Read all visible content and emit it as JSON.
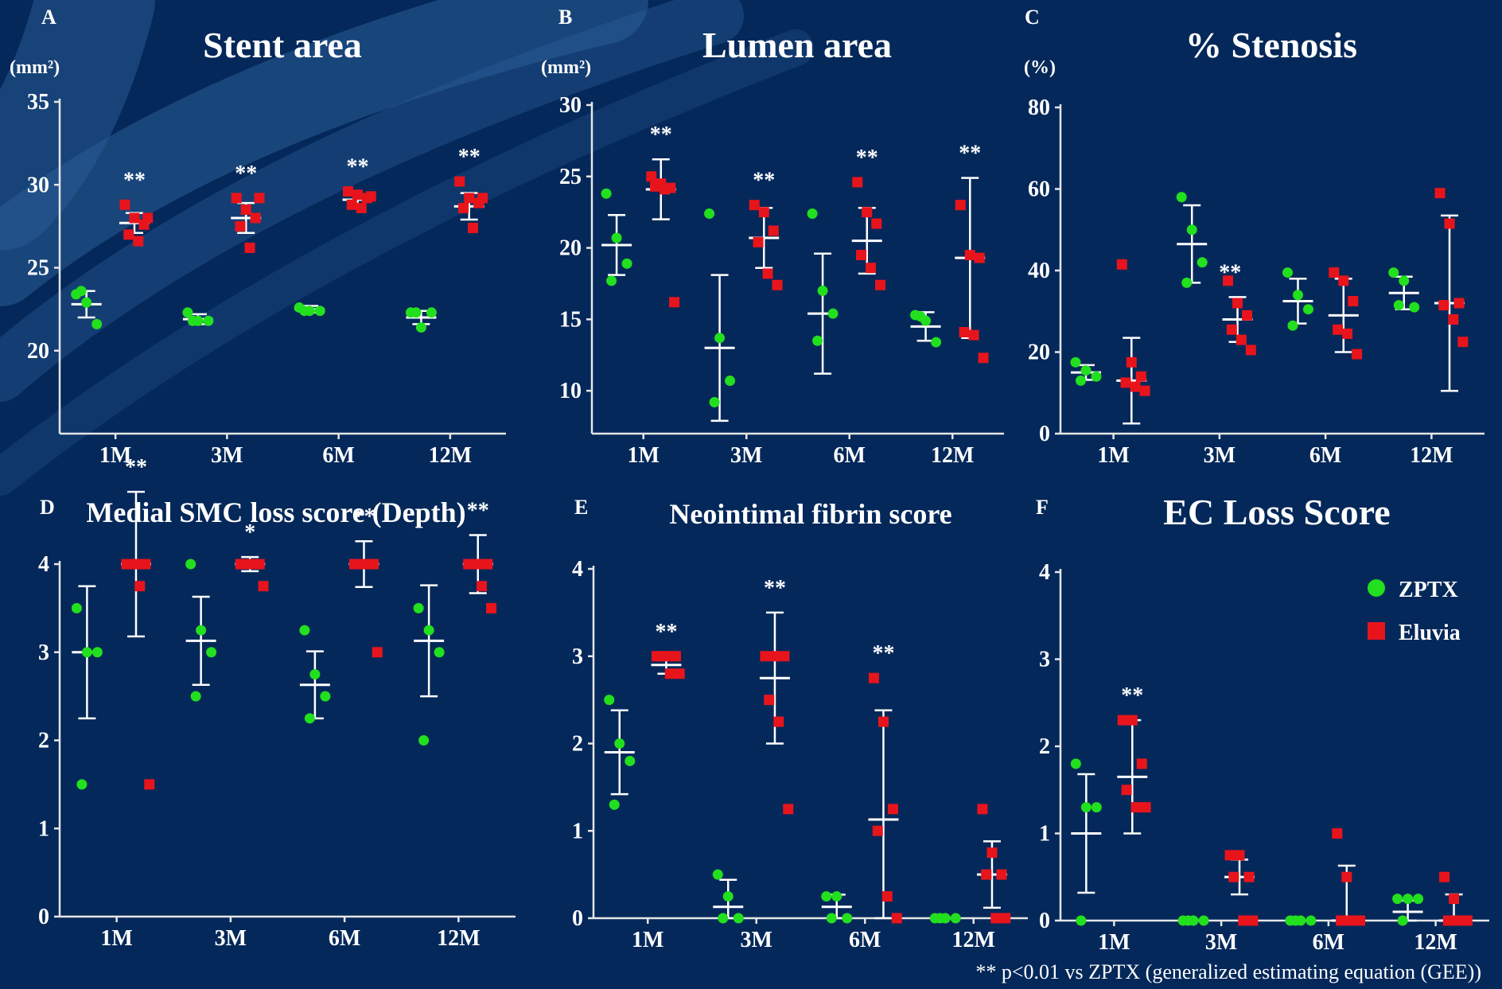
{
  "colors": {
    "background": "#04285a",
    "brush_stroke": "#2a5d95",
    "axis": "#e6e6e6",
    "text": "#ffffff",
    "zptx": "#22e01e",
    "eluvia": "#e8141c",
    "mean_sd": "#ffffff"
  },
  "legend": [
    {
      "name": "ZPTX",
      "marker": "circle",
      "color": "#22e01e"
    },
    {
      "name": "Eluvia",
      "marker": "square",
      "color": "#e8141c"
    }
  ],
  "footnote": "** p<0.01 vs ZPTX (generalized estimating equation (GEE))",
  "chart_data": [
    {
      "id": "A",
      "type": "scatter",
      "title": "Stent area",
      "unit": "(mm²)",
      "categories": [
        "1M",
        "3M",
        "6M",
        "12M"
      ],
      "ylim": [
        15,
        35
      ],
      "yticks": [
        20,
        25,
        30,
        35
      ],
      "series": [
        {
          "name": "ZPTX",
          "points": [
            [
              23.4,
              22.9,
              21.6,
              23.6
            ],
            [
              22.3,
              21.8,
              21.8,
              21.8
            ],
            [
              22.6,
              22.4,
              22.4,
              22.4
            ],
            [
              22.3,
              21.4,
              22.3,
              22.3
            ]
          ],
          "mean": [
            22.8,
            21.9,
            22.5,
            22.0
          ],
          "sd": [
            0.8,
            0.3,
            0.2,
            0.4
          ]
        },
        {
          "name": "Eluvia",
          "points": [
            [
              28.8,
              28.0,
              27.6,
              27.0,
              26.6,
              28.0
            ],
            [
              29.2,
              28.5,
              28.0,
              27.5,
              26.2,
              29.2
            ],
            [
              29.6,
              29.4,
              29.2,
              28.8,
              28.6,
              29.3
            ],
            [
              30.2,
              29.2,
              28.9,
              28.6,
              27.4,
              29.2
            ]
          ],
          "mean": [
            27.7,
            28.0,
            29.1,
            28.7
          ],
          "sd": [
            0.6,
            0.9,
            0.3,
            0.8
          ]
        }
      ],
      "significance": [
        "**",
        "**",
        "**",
        "**"
      ]
    },
    {
      "id": "B",
      "type": "scatter",
      "title": "Lumen area",
      "unit": "(mm²)",
      "categories": [
        "1M",
        "3M",
        "6M",
        "12M"
      ],
      "ylim": [
        7,
        30
      ],
      "yticks": [
        10,
        15,
        20,
        25,
        30
      ],
      "series": [
        {
          "name": "ZPTX",
          "points": [
            [
              23.8,
              20.7,
              18.9,
              17.7
            ],
            [
              22.4,
              13.7,
              10.7,
              9.2
            ],
            [
              22.4,
              17.0,
              15.4,
              13.5
            ],
            [
              15.3,
              14.9,
              13.4,
              15.2
            ]
          ],
          "mean": [
            20.2,
            13.0,
            15.4,
            14.5
          ],
          "sd": [
            2.1,
            5.1,
            4.2,
            1.0
          ]
        },
        {
          "name": "Eluvia",
          "points": [
            [
              25.0,
              24.5,
              24.2,
              24.3,
              24.1,
              16.2
            ],
            [
              23.0,
              22.5,
              21.2,
              20.4,
              18.2,
              17.4
            ],
            [
              24.6,
              22.5,
              21.7,
              19.5,
              18.6,
              17.4
            ],
            [
              23.0,
              19.5,
              19.3,
              14.1,
              13.9,
              12.3
            ]
          ],
          "mean": [
            24.1,
            20.7,
            20.5,
            19.3
          ],
          "sd": [
            2.1,
            2.1,
            2.3,
            5.6
          ]
        }
      ],
      "significance": [
        "**",
        "**",
        "**",
        "**"
      ]
    },
    {
      "id": "C",
      "type": "scatter",
      "title": "% Stenosis",
      "unit": "(%)",
      "categories": [
        "1M",
        "3M",
        "6M",
        "12M"
      ],
      "ylim": [
        0,
        80
      ],
      "yticks": [
        0,
        20,
        40,
        60,
        80
      ],
      "series": [
        {
          "name": "ZPTX",
          "points": [
            [
              17.5,
              15.5,
              14.0,
              13.0
            ],
            [
              58.0,
              50.0,
              42.0,
              37.0
            ],
            [
              39.5,
              34.0,
              30.5,
              26.5
            ],
            [
              39.5,
              37.5,
              31.0,
              31.5
            ]
          ],
          "mean": [
            15.0,
            46.5,
            32.5,
            34.5
          ],
          "sd": [
            1.8,
            9.5,
            5.5,
            4.0
          ]
        },
        {
          "name": "Eluvia",
          "points": [
            [
              41.5,
              17.5,
              14.0,
              12.5,
              11.5,
              10.5
            ],
            [
              37.5,
              32.0,
              29.0,
              25.5,
              23.0,
              20.5
            ],
            [
              39.5,
              37.5,
              32.5,
              25.5,
              24.5,
              19.5
            ],
            [
              59.0,
              51.5,
              32.0,
              31.5,
              28.0,
              22.5
            ]
          ],
          "mean": [
            13.0,
            28.0,
            29.0,
            32.0
          ],
          "sd": [
            10.5,
            5.5,
            9.0,
            21.5
          ]
        }
      ],
      "significance": [
        "**",
        "",
        "",
        ""
      ]
    },
    {
      "id": "D",
      "type": "scatter",
      "title": "Medial SMC loss score (Depth)",
      "unit": "",
      "categories": [
        "1M",
        "3M",
        "6M",
        "12M"
      ],
      "ylim": [
        0,
        4
      ],
      "yticks": [
        0,
        1,
        2,
        3,
        4
      ],
      "series": [
        {
          "name": "ZPTX",
          "points": [
            [
              3.5,
              3.0,
              3.0,
              1.5
            ],
            [
              4.0,
              3.25,
              3.0,
              2.5
            ],
            [
              3.25,
              2.75,
              2.5,
              2.25
            ],
            [
              3.5,
              3.25,
              3.0,
              2.0
            ]
          ],
          "mean": [
            3.0,
            3.13,
            2.63,
            3.13
          ],
          "sd": [
            0.75,
            0.5,
            0.38,
            0.63
          ]
        },
        {
          "name": "Eluvia",
          "points": [
            [
              4.0,
              4.0,
              4.0,
              4.0,
              3.75,
              1.5
            ],
            [
              4.0,
              4.0,
              4.0,
              4.0,
              4.0,
              3.75
            ],
            [
              4.0,
              4.0,
              4.0,
              4.0,
              4.0,
              3.0
            ],
            [
              4.0,
              4.0,
              4.0,
              4.0,
              3.75,
              3.5
            ]
          ],
          "mean": [
            4.0,
            4.0,
            4.0,
            4.0
          ],
          "sd": [
            0.82,
            0.08,
            0.26,
            0.33
          ]
        }
      ],
      "significance": [
        "**",
        "*",
        "**",
        "**"
      ]
    },
    {
      "id": "E",
      "type": "scatter",
      "title": "Neointimal fibrin score",
      "unit": "",
      "categories": [
        "1M",
        "3M",
        "6M",
        "12M"
      ],
      "ylim": [
        0,
        4
      ],
      "yticks": [
        0,
        1,
        2,
        3,
        4
      ],
      "series": [
        {
          "name": "ZPTX",
          "points": [
            [
              2.5,
              2.0,
              1.8,
              1.3
            ],
            [
              0.5,
              0.25,
              0.0,
              0.0
            ],
            [
              0.25,
              0.25,
              0.0,
              0.0
            ],
            [
              0.0,
              0.0,
              0.0,
              0.0
            ]
          ],
          "mean": [
            1.9,
            0.13,
            0.13,
            0.0
          ],
          "sd": [
            0.48,
            0.31,
            0.14,
            0.0
          ]
        },
        {
          "name": "Eluvia",
          "points": [
            [
              3.0,
              3.0,
              3.0,
              3.0,
              2.8,
              2.8
            ],
            [
              3.0,
              3.0,
              3.0,
              2.5,
              2.25,
              1.25
            ],
            [
              2.75,
              2.25,
              1.25,
              1.0,
              0.25,
              0.0
            ],
            [
              1.25,
              0.75,
              0.5,
              0.5,
              0.0,
              0.0
            ]
          ],
          "mean": [
            2.9,
            2.75,
            1.13,
            0.5
          ],
          "sd": [
            0.1,
            0.75,
            1.25,
            0.38
          ]
        }
      ],
      "significance": [
        "**",
        "**",
        "**",
        ""
      ]
    },
    {
      "id": "F",
      "type": "scatter",
      "title": "EC Loss Score",
      "unit": "",
      "categories": [
        "1M",
        "3M",
        "6M",
        "12M"
      ],
      "ylim": [
        0,
        4
      ],
      "yticks": [
        0,
        1,
        2,
        3,
        4
      ],
      "series": [
        {
          "name": "ZPTX",
          "points": [
            [
              1.8,
              1.3,
              1.3,
              0.0
            ],
            [
              0.0,
              0.0,
              0.0,
              0.0
            ],
            [
              0.0,
              0.0,
              0.0,
              0.0
            ],
            [
              0.25,
              0.25,
              0.25,
              0.0
            ]
          ],
          "mean": [
            1.0,
            0.0,
            0.0,
            0.1
          ],
          "sd": [
            0.68,
            0.0,
            0.0,
            0.13
          ]
        },
        {
          "name": "Eluvia",
          "points": [
            [
              2.3,
              2.3,
              1.8,
              1.5,
              1.3,
              1.3
            ],
            [
              0.75,
              0.75,
              0.5,
              0.5,
              0.0,
              0.0
            ],
            [
              1.0,
              0.5,
              0.0,
              0.0,
              0.0,
              0.0
            ],
            [
              0.5,
              0.25,
              0.0,
              0.0,
              0.0,
              0.0
            ]
          ],
          "mean": [
            1.65,
            0.5,
            0.0,
            0.0
          ],
          "sd": [
            0.65,
            0.2,
            0.63,
            0.3
          ]
        }
      ],
      "significance": [
        "**",
        "",
        "",
        ""
      ]
    }
  ]
}
